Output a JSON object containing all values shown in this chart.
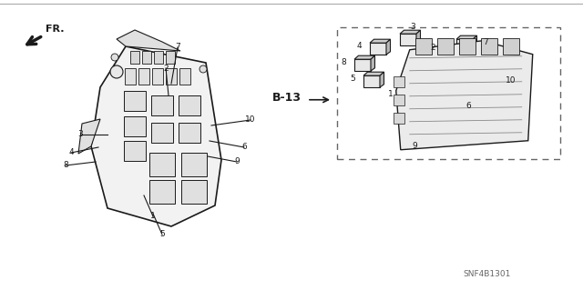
{
  "background_color": "#ffffff",
  "part_code": "SNF4B1301",
  "ref_code": "B-13",
  "line_color": "#1a1a1a",
  "text_color": "#1a1a1a",
  "fig_width": 6.4,
  "fig_height": 3.19,
  "dpi": 100
}
